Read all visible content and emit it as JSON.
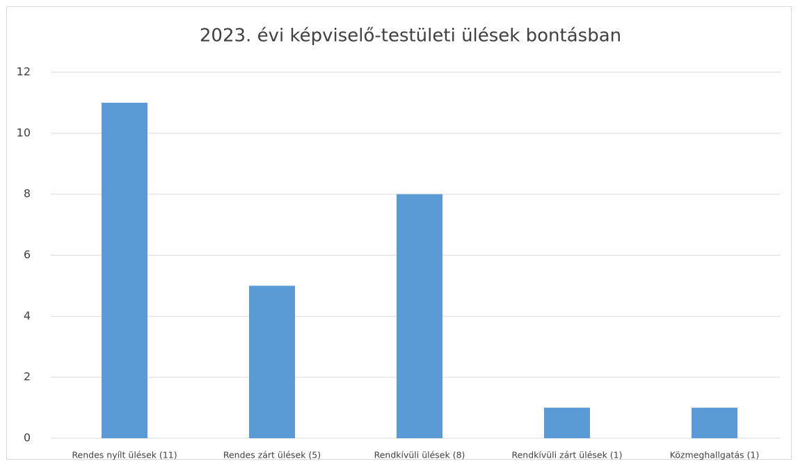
{
  "chart_data": {
    "type": "bar",
    "title": "2023. évi képviselő-testületi ülések bontásban",
    "categories": [
      "Rendes nyílt ülések (11)",
      "Rendes zárt ülések (5)",
      "Rendkívüli ülések (8)",
      "Rendkívüli zárt ülések (1)",
      "Közmeghallgatás (1)"
    ],
    "values": [
      11,
      5,
      8,
      1,
      1
    ],
    "color": "#5b9bd5",
    "ylim": [
      0,
      12
    ],
    "yticks": [
      0,
      2,
      4,
      6,
      8,
      10,
      12
    ],
    "grid": true
  }
}
